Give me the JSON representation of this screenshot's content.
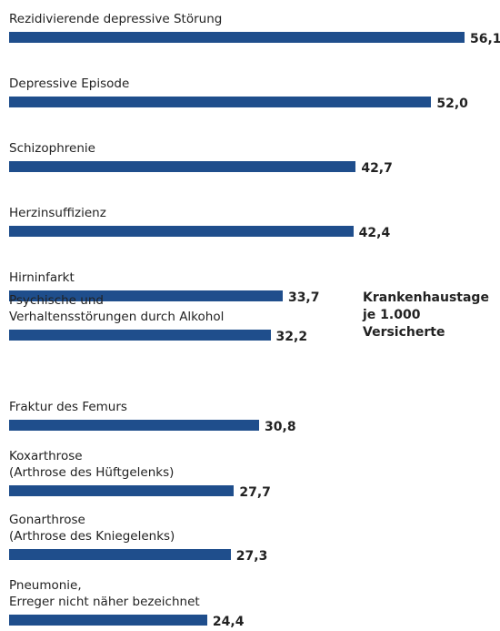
{
  "chart_data": {
    "type": "bar",
    "orientation": "horizontal",
    "color": "#1f4e8c",
    "annotation": "Krankenhaustage\nje 1.000\nVersicherte",
    "categories": [
      "Rezidivierende depressive Störung",
      "Depressive Episode",
      "Schizophrenie",
      "Herzinsuffizienz",
      "Hirninfarkt",
      "Psychische und\nVerhaltensstörungen durch Alkohol",
      "Fraktur des Femurs",
      "Koxarthrose\n(Arthrose des Hüftgelenks)",
      "Gonarthrose\n(Arthrose des Kniegelenks)",
      "Pneumonie,\nErreger nicht näher bezeichnet"
    ],
    "values": [
      56.1,
      52.0,
      42.7,
      42.4,
      33.7,
      32.2,
      30.8,
      27.7,
      27.3,
      24.4
    ],
    "value_labels": [
      "56,1",
      "52,0",
      "42,7",
      "42,4",
      "33,7",
      "32,2",
      "30,8",
      "27,7",
      "27,3",
      "24,4"
    ]
  }
}
